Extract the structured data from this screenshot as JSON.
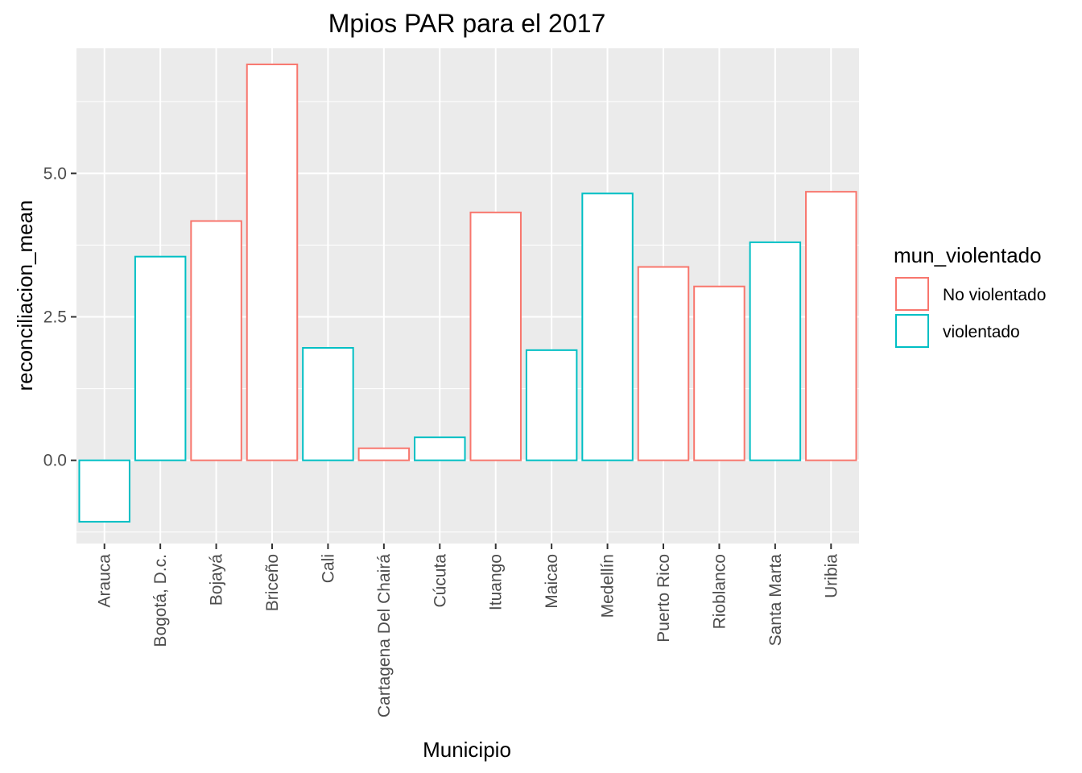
{
  "chart_data": {
    "type": "bar",
    "title": "Mpios PAR para el 2017",
    "xlabel": "Municipio",
    "ylabel": "reconciliacion_mean",
    "categories": [
      "Arauca",
      "Bogotá, D.c.",
      "Bojayá",
      "Briceño",
      "Cali",
      "Cartagena Del Chairá",
      "Cúcuta",
      "Ituango",
      "Maicao",
      "Medellín",
      "Puerto Rico",
      "Rioblanco",
      "Santa Marta",
      "Uribia"
    ],
    "values": [
      -1.07,
      3.55,
      4.17,
      6.9,
      1.96,
      0.21,
      0.4,
      4.32,
      1.92,
      4.65,
      3.37,
      3.03,
      3.8,
      4.68
    ],
    "groups": [
      "violentado",
      "violentado",
      "No violentado",
      "No violentado",
      "violentado",
      "No violentado",
      "violentado",
      "No violentado",
      "violentado",
      "violentado",
      "No violentado",
      "No violentado",
      "violentado",
      "No violentado"
    ],
    "ylim": [
      -1.45,
      7.18
    ],
    "yticks": [
      0.0,
      2.5,
      5.0
    ],
    "ytick_labels": [
      "0.0",
      "2.5",
      "5.0"
    ],
    "grid": true,
    "legend": {
      "title": "mun_violentado",
      "position": "right",
      "entries": [
        {
          "label": "No violentado",
          "color": "#F8766D"
        },
        {
          "label": "violentado",
          "color": "#00BFC4"
        }
      ]
    },
    "colors": {
      "No violentado": "#F8766D",
      "violentado": "#00BFC4",
      "panel_background": "#EBEBEB",
      "grid_line": "#FFFFFF"
    }
  }
}
